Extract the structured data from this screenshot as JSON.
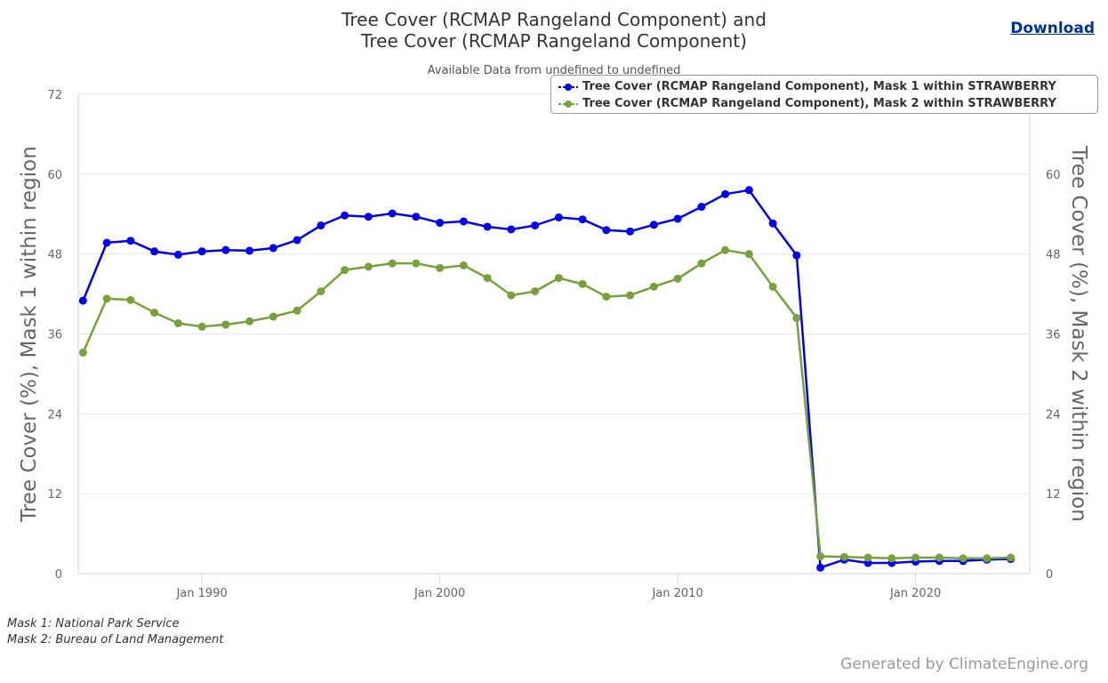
{
  "header": {
    "title_line1": "Tree Cover (RCMAP Rangeland Component) and",
    "title_line2": "Tree Cover (RCMAP Rangeland Component)",
    "subtitle": "Available Data from undefined to undefined",
    "download_label": "Download"
  },
  "footer": {
    "mask1": "Mask 1: National Park Service",
    "mask2": "Mask 2: Bureau of Land Management",
    "credits": "Generated by ClimateEngine.org"
  },
  "colors": {
    "series1": "#0000ee",
    "series2": "#77a13b",
    "grid": "#e6e6e6",
    "axis_line": "#ccd6eb"
  },
  "chart_data": {
    "type": "line",
    "x_type": "year",
    "x": [
      1985,
      1986,
      1987,
      1988,
      1989,
      1990,
      1991,
      1992,
      1993,
      1994,
      1995,
      1996,
      1997,
      1998,
      1999,
      2000,
      2001,
      2002,
      2003,
      2004,
      2005,
      2006,
      2007,
      2008,
      2009,
      2010,
      2011,
      2012,
      2013,
      2014,
      2015,
      2016,
      2017,
      2018,
      2019,
      2020,
      2021,
      2022,
      2023,
      2024
    ],
    "x_ticks": [
      "Jan 1990",
      "Jan 2000",
      "Jan 2010",
      "Jan 2020"
    ],
    "x_tick_years": [
      1990,
      2000,
      2010,
      2020
    ],
    "xlim": [
      1984.8,
      2024.8
    ],
    "y_left_label": "Tree Cover (%), Mask 1 within region",
    "y_right_label": "Tree Cover (%), Mask 2 within region",
    "ylim": [
      0,
      72
    ],
    "y_ticks": [
      0,
      12,
      24,
      36,
      48,
      60,
      72
    ],
    "grid": true,
    "legend_position": "top-right",
    "series": [
      {
        "name": "Tree Cover (RCMAP Rangeland Component), Mask 1 within STRAWBERRY",
        "color": "#0000ee",
        "values": [
          41.0,
          49.7,
          50.0,
          48.4,
          47.9,
          48.4,
          48.6,
          48.5,
          48.9,
          50.1,
          52.3,
          53.8,
          53.6,
          54.1,
          53.6,
          52.7,
          52.9,
          52.1,
          51.7,
          52.3,
          53.5,
          53.2,
          51.6,
          51.4,
          52.4,
          53.3,
          55.1,
          57.0,
          57.6,
          52.6,
          47.8,
          0.9,
          2.1,
          1.6,
          1.6,
          1.8,
          1.9,
          1.9,
          2.1,
          2.2
        ]
      },
      {
        "name": "Tree Cover (RCMAP Rangeland Component), Mask 2 within STRAWBERRY",
        "color": "#77a13b",
        "values": [
          33.2,
          41.3,
          41.1,
          39.2,
          37.6,
          37.1,
          37.4,
          37.9,
          38.6,
          39.5,
          42.4,
          45.6,
          46.1,
          46.6,
          46.6,
          45.9,
          46.3,
          44.4,
          41.8,
          42.4,
          44.4,
          43.5,
          41.6,
          41.8,
          43.1,
          44.3,
          46.6,
          48.6,
          48.0,
          43.1,
          38.4,
          2.6,
          2.5,
          2.4,
          2.3,
          2.4,
          2.4,
          2.3,
          2.3,
          2.4
        ]
      }
    ]
  }
}
